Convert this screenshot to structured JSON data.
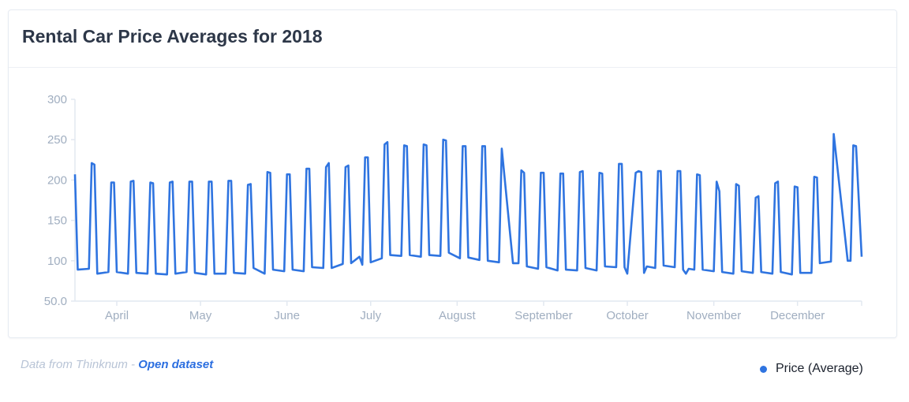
{
  "card": {
    "title": "Rental Car Price Averages for 2018"
  },
  "footer": {
    "source_prefix": "Data from Thinknum - ",
    "link_label": "Open dataset"
  },
  "colors": {
    "line": "#2f74e0",
    "axis": "#e2e8f0",
    "tick_text": "#a0aec0"
  },
  "chart_data": {
    "type": "line",
    "title": "Rental Car Price Averages for 2018",
    "xlabel": "",
    "ylabel": "",
    "ylim": [
      50,
      300
    ],
    "yticks": [
      "50.0",
      "100",
      "150",
      "200",
      "250",
      "300"
    ],
    "xlim": [
      "2018-03-17",
      "2018-12-24"
    ],
    "xticks": [
      {
        "label": "April",
        "date": "2018-04-01"
      },
      {
        "label": "May",
        "date": "2018-05-01"
      },
      {
        "label": "June",
        "date": "2018-06-01"
      },
      {
        "label": "July",
        "date": "2018-07-01"
      },
      {
        "label": "August",
        "date": "2018-08-01"
      },
      {
        "label": "September",
        "date": "2018-09-01"
      },
      {
        "label": "October",
        "date": "2018-10-01"
      },
      {
        "label": "November",
        "date": "2018-11-01"
      },
      {
        "label": "December",
        "date": "2018-12-01"
      }
    ],
    "grid": false,
    "legend": "bottom-right",
    "series": [
      {
        "name": "Price (Average)",
        "color": "#2f74e0",
        "points": [
          [
            "2018-03-17",
            207
          ],
          [
            "2018-03-18",
            89
          ],
          [
            "2018-03-22",
            90
          ],
          [
            "2018-03-23",
            221
          ],
          [
            "2018-03-24",
            219
          ],
          [
            "2018-03-25",
            84
          ],
          [
            "2018-03-29",
            86
          ],
          [
            "2018-03-30",
            197
          ],
          [
            "2018-03-31",
            197
          ],
          [
            "2018-04-01",
            86
          ],
          [
            "2018-04-05",
            84
          ],
          [
            "2018-04-06",
            198
          ],
          [
            "2018-04-07",
            199
          ],
          [
            "2018-04-08",
            85
          ],
          [
            "2018-04-12",
            84
          ],
          [
            "2018-04-13",
            197
          ],
          [
            "2018-04-14",
            196
          ],
          [
            "2018-04-15",
            84
          ],
          [
            "2018-04-19",
            83
          ],
          [
            "2018-04-20",
            197
          ],
          [
            "2018-04-21",
            198
          ],
          [
            "2018-04-22",
            84
          ],
          [
            "2018-04-26",
            86
          ],
          [
            "2018-04-27",
            198
          ],
          [
            "2018-04-28",
            198
          ],
          [
            "2018-04-29",
            85
          ],
          [
            "2018-05-03",
            83
          ],
          [
            "2018-05-04",
            198
          ],
          [
            "2018-05-05",
            198
          ],
          [
            "2018-05-06",
            84
          ],
          [
            "2018-05-10",
            84
          ],
          [
            "2018-05-11",
            199
          ],
          [
            "2018-05-12",
            199
          ],
          [
            "2018-05-13",
            85
          ],
          [
            "2018-05-17",
            84
          ],
          [
            "2018-05-18",
            194
          ],
          [
            "2018-05-19",
            195
          ],
          [
            "2018-05-20",
            91
          ],
          [
            "2018-05-24",
            84
          ],
          [
            "2018-05-25",
            210
          ],
          [
            "2018-05-26",
            209
          ],
          [
            "2018-05-27",
            89
          ],
          [
            "2018-05-31",
            87
          ],
          [
            "2018-06-01",
            207
          ],
          [
            "2018-06-02",
            207
          ],
          [
            "2018-06-03",
            89
          ],
          [
            "2018-06-07",
            87
          ],
          [
            "2018-06-08",
            214
          ],
          [
            "2018-06-09",
            214
          ],
          [
            "2018-06-10",
            92
          ],
          [
            "2018-06-14",
            91
          ],
          [
            "2018-06-15",
            216
          ],
          [
            "2018-06-16",
            221
          ],
          [
            "2018-06-17",
            91
          ],
          [
            "2018-06-21",
            96
          ],
          [
            "2018-06-22",
            216
          ],
          [
            "2018-06-23",
            218
          ],
          [
            "2018-06-24",
            97
          ],
          [
            "2018-06-27",
            105
          ],
          [
            "2018-06-28",
            95
          ],
          [
            "2018-06-29",
            228
          ],
          [
            "2018-06-30",
            228
          ],
          [
            "2018-07-01",
            98
          ],
          [
            "2018-07-05",
            103
          ],
          [
            "2018-07-06",
            244
          ],
          [
            "2018-07-07",
            247
          ],
          [
            "2018-07-08",
            107
          ],
          [
            "2018-07-12",
            106
          ],
          [
            "2018-07-13",
            243
          ],
          [
            "2018-07-14",
            242
          ],
          [
            "2018-07-15",
            107
          ],
          [
            "2018-07-19",
            105
          ],
          [
            "2018-07-20",
            244
          ],
          [
            "2018-07-21",
            243
          ],
          [
            "2018-07-22",
            107
          ],
          [
            "2018-07-26",
            106
          ],
          [
            "2018-07-27",
            250
          ],
          [
            "2018-07-28",
            249
          ],
          [
            "2018-07-29",
            110
          ],
          [
            "2018-08-02",
            103
          ],
          [
            "2018-08-03",
            242
          ],
          [
            "2018-08-04",
            242
          ],
          [
            "2018-08-05",
            104
          ],
          [
            "2018-08-09",
            101
          ],
          [
            "2018-08-10",
            242
          ],
          [
            "2018-08-11",
            242
          ],
          [
            "2018-08-12",
            100
          ],
          [
            "2018-08-16",
            98
          ],
          [
            "2018-08-17",
            239
          ],
          [
            "2018-08-21",
            97
          ],
          [
            "2018-08-23",
            97
          ],
          [
            "2018-08-24",
            212
          ],
          [
            "2018-08-25",
            209
          ],
          [
            "2018-08-26",
            93
          ],
          [
            "2018-08-30",
            90
          ],
          [
            "2018-08-31",
            209
          ],
          [
            "2018-09-01",
            209
          ],
          [
            "2018-09-02",
            92
          ],
          [
            "2018-09-06",
            88
          ],
          [
            "2018-09-07",
            208
          ],
          [
            "2018-09-08",
            208
          ],
          [
            "2018-09-09",
            89
          ],
          [
            "2018-09-13",
            88
          ],
          [
            "2018-09-14",
            210
          ],
          [
            "2018-09-15",
            211
          ],
          [
            "2018-09-16",
            91
          ],
          [
            "2018-09-20",
            88
          ],
          [
            "2018-09-21",
            209
          ],
          [
            "2018-09-22",
            208
          ],
          [
            "2018-09-23",
            93
          ],
          [
            "2018-09-27",
            92
          ],
          [
            "2018-09-28",
            220
          ],
          [
            "2018-09-29",
            220
          ],
          [
            "2018-09-30",
            92
          ],
          [
            "2018-10-01",
            84
          ],
          [
            "2018-10-04",
            209
          ],
          [
            "2018-10-05",
            211
          ],
          [
            "2018-10-06",
            210
          ],
          [
            "2018-10-07",
            85
          ],
          [
            "2018-10-08",
            93
          ],
          [
            "2018-10-11",
            91
          ],
          [
            "2018-10-12",
            211
          ],
          [
            "2018-10-13",
            211
          ],
          [
            "2018-10-14",
            94
          ],
          [
            "2018-10-18",
            92
          ],
          [
            "2018-10-19",
            211
          ],
          [
            "2018-10-20",
            211
          ],
          [
            "2018-10-21",
            89
          ],
          [
            "2018-10-22",
            84
          ],
          [
            "2018-10-23",
            90
          ],
          [
            "2018-10-25",
            89
          ],
          [
            "2018-10-26",
            207
          ],
          [
            "2018-10-27",
            206
          ],
          [
            "2018-10-28",
            89
          ],
          [
            "2018-11-01",
            87
          ],
          [
            "2018-11-02",
            198
          ],
          [
            "2018-11-03",
            186
          ],
          [
            "2018-11-04",
            86
          ],
          [
            "2018-11-08",
            84
          ],
          [
            "2018-11-09",
            195
          ],
          [
            "2018-11-10",
            193
          ],
          [
            "2018-11-11",
            87
          ],
          [
            "2018-11-15",
            85
          ],
          [
            "2018-11-16",
            178
          ],
          [
            "2018-11-17",
            180
          ],
          [
            "2018-11-18",
            86
          ],
          [
            "2018-11-22",
            84
          ],
          [
            "2018-11-23",
            196
          ],
          [
            "2018-11-24",
            198
          ],
          [
            "2018-11-25",
            86
          ],
          [
            "2018-11-29",
            83
          ],
          [
            "2018-11-30",
            192
          ],
          [
            "2018-12-01",
            191
          ],
          [
            "2018-12-02",
            85
          ],
          [
            "2018-12-06",
            85
          ],
          [
            "2018-12-07",
            204
          ],
          [
            "2018-12-08",
            203
          ],
          [
            "2018-12-09",
            97
          ],
          [
            "2018-12-13",
            99
          ],
          [
            "2018-12-14",
            257
          ],
          [
            "2018-12-19",
            100
          ],
          [
            "2018-12-20",
            100
          ],
          [
            "2018-12-21",
            243
          ],
          [
            "2018-12-22",
            242
          ],
          [
            "2018-12-24",
            105
          ]
        ]
      }
    ]
  }
}
